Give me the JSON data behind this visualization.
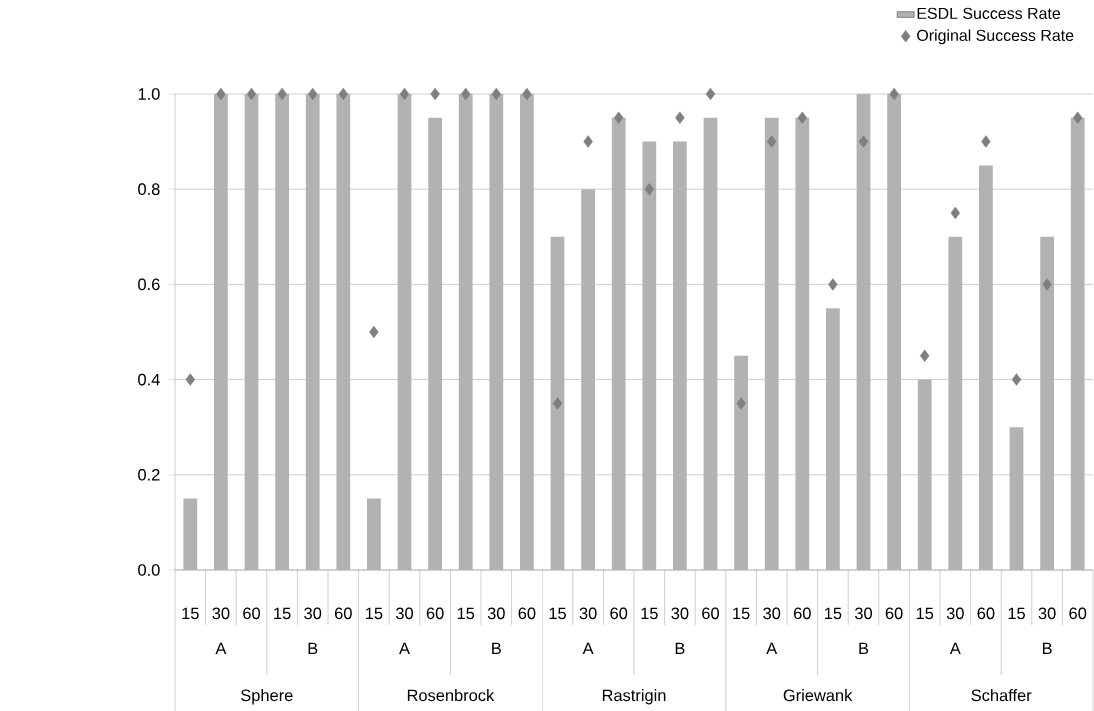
{
  "chart_data": {
    "type": "bar",
    "categories": [
      "15",
      "30",
      "60",
      "15",
      "30",
      "60",
      "15",
      "30",
      "60",
      "15",
      "30",
      "60",
      "15",
      "30",
      "60",
      "15",
      "30",
      "60",
      "15",
      "30",
      "60",
      "15",
      "30",
      "60",
      "15",
      "30",
      "60",
      "15",
      "30",
      "60"
    ],
    "series": [
      {
        "name": "ESDL Success Rate",
        "color": "#b2b2b2",
        "values": [
          0.15,
          1.0,
          1.0,
          1.0,
          1.0,
          1.0,
          0.15,
          1.0,
          0.95,
          1.0,
          1.0,
          1.0,
          0.7,
          0.8,
          0.95,
          0.9,
          0.9,
          0.95,
          0.45,
          0.95,
          0.95,
          0.55,
          1.0,
          1.0,
          0.4,
          0.7,
          0.85,
          0.3,
          0.7,
          0.95
        ]
      },
      {
        "name": "Original Success Rate",
        "type": "scatter",
        "marker": "diamond",
        "color": "#7f7f7f",
        "values": [
          0.4,
          1.0,
          1.0,
          1.0,
          1.0,
          1.0,
          0.5,
          1.0,
          1.0,
          1.0,
          1.0,
          1.0,
          0.35,
          0.9,
          0.95,
          0.8,
          0.95,
          1.0,
          0.35,
          0.9,
          0.95,
          0.6,
          0.9,
          1.0,
          0.45,
          0.75,
          0.9,
          0.4,
          0.6,
          0.95
        ]
      }
    ],
    "ylim": [
      0,
      1.0
    ],
    "yticks": [
      {
        "value": 0,
        "label": "0.0"
      },
      {
        "value": 0.2,
        "label": "0.2"
      },
      {
        "value": 0.4,
        "label": "0.4"
      },
      {
        "value": 0.6,
        "label": "0.6"
      },
      {
        "value": 0.8,
        "label": "0.8"
      },
      {
        "value": 1.0,
        "label": "1.0"
      }
    ],
    "grid": "y",
    "legend": "top right",
    "annotations": [
      "A",
      "B",
      "A",
      "B",
      "A",
      "B",
      "A",
      "B",
      "A",
      "B",
      "Sphere",
      "Rosenbrock",
      "Rastrigin",
      "Griewank",
      "Schaffer"
    ]
  }
}
